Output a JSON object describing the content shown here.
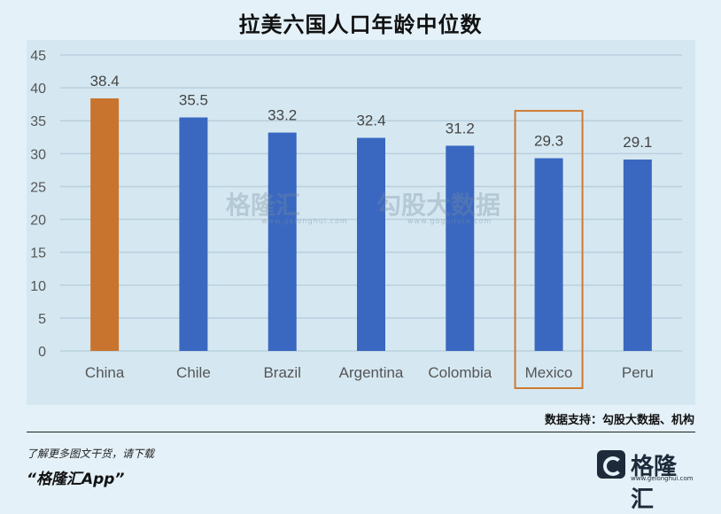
{
  "title": "拉美六国人口年龄中位数",
  "watermark": {
    "left_text": "格隆汇",
    "left_url": "www.gelonghui.com",
    "right_text": "勾股大数据",
    "right_url": "www.gogudata.com"
  },
  "source": "数据支持：勾股大数据、机构",
  "promo": {
    "line1": "了解更多图文干货，请下载",
    "line2": "“格隆汇App”"
  },
  "logo": {
    "text": "格隆汇",
    "url": "www.gelonghui.com"
  },
  "colors": {
    "default_bar": "#3a68c0",
    "highlight_bar": "#c9742e",
    "box": "#d07a30",
    "grid": "#b9cfdc"
  },
  "chart_data": {
    "type": "bar",
    "title": "拉美六国人口年龄中位数",
    "categories": [
      "China",
      "Chile",
      "Brazil",
      "Argentina",
      "Colombia",
      "Mexico",
      "Peru"
    ],
    "values": [
      38.4,
      35.5,
      33.2,
      32.4,
      31.2,
      29.3,
      29.1
    ],
    "data_labels": [
      "38.4",
      "35.5",
      "33.2",
      "32.4",
      "31.2",
      "29.3",
      "29.1"
    ],
    "yticks": [
      0,
      5,
      10,
      15,
      20,
      25,
      30,
      35,
      40,
      45
    ],
    "ylim": [
      0,
      45
    ],
    "grid": true,
    "highlight_bar": "China",
    "boxed_category": "Mexico"
  }
}
